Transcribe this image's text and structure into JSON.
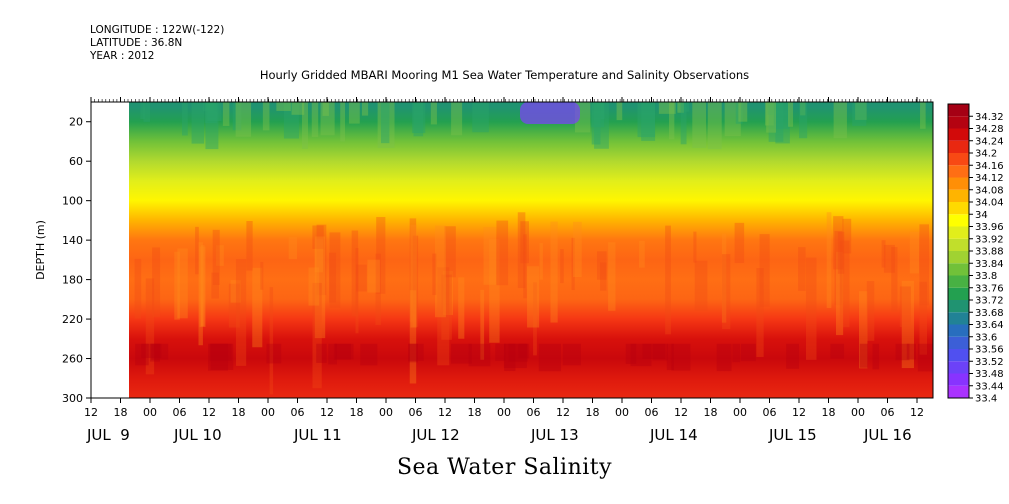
{
  "header": {
    "longitude": "LONGITUDE : 122W(-122)",
    "latitude": "LATITUDE : 36.8N",
    "year": "YEAR : 2012"
  },
  "chart_data": {
    "type": "heatmap",
    "title": "Hourly Gridded MBARI Mooring M1 Sea Water Temperature and Salinity Observations",
    "ylabel": "DEPTH (m)",
    "xlabel": "Sea Water Salinity",
    "ylim": [
      300,
      0
    ],
    "y_ticks": [
      20,
      60,
      100,
      140,
      180,
      220,
      260,
      300
    ],
    "x_hour_ticks": [
      "12",
      "18",
      "00",
      "06",
      "12",
      "18",
      "00",
      "06",
      "12",
      "18",
      "00",
      "06",
      "12",
      "18",
      "00",
      "06",
      "12",
      "18",
      "00",
      "06",
      "12",
      "18",
      "00",
      "06",
      "12",
      "18",
      "00",
      "06",
      "12"
    ],
    "x_day_labels": [
      "JUL  9",
      "JUL 10",
      "JUL 11",
      "JUL 12",
      "JUL 13",
      "JUL 14",
      "JUL 15",
      "JUL 16"
    ],
    "colorbar_levels": [
      "33.4",
      "33.44",
      "33.48",
      "33.52",
      "33.56",
      "33.6",
      "33.64",
      "33.68",
      "33.72",
      "33.76",
      "33.8",
      "33.84",
      "33.88",
      "33.92",
      "33.96",
      "34",
      "34.04",
      "34.08",
      "34.12",
      "34.16",
      "34.2",
      "34.24",
      "34.28",
      "34.32"
    ],
    "depth_profile": [
      {
        "depth": 5,
        "value": 33.7
      },
      {
        "depth": 20,
        "value": 33.74
      },
      {
        "depth": 40,
        "value": 33.82
      },
      {
        "depth": 60,
        "value": 33.88
      },
      {
        "depth": 80,
        "value": 33.94
      },
      {
        "depth": 100,
        "value": 33.99
      },
      {
        "depth": 120,
        "value": 34.06
      },
      {
        "depth": 140,
        "value": 34.13
      },
      {
        "depth": 160,
        "value": 34.15
      },
      {
        "depth": 180,
        "value": 34.14
      },
      {
        "depth": 200,
        "value": 34.15
      },
      {
        "depth": 220,
        "value": 34.2
      },
      {
        "depth": 240,
        "value": 34.25
      },
      {
        "depth": 260,
        "value": 34.27
      },
      {
        "depth": 280,
        "value": 34.24
      },
      {
        "depth": 300,
        "value": 34.22
      }
    ]
  }
}
